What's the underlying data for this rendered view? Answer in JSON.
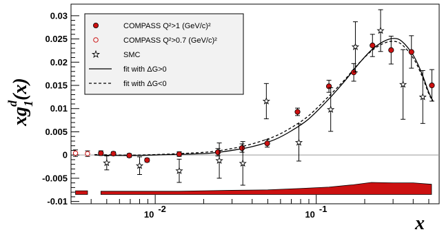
{
  "chart_data": {
    "type": "scatter",
    "xlabel": "x",
    "ylabel": "xg",
    "ylabel_sup": "d",
    "ylabel_sub": "1",
    "ylabel_arg": "(x)",
    "x_scale": "log",
    "xlim": [
      0.003,
      0.58
    ],
    "ylim": [
      -0.0105,
      0.0325
    ],
    "grid": false,
    "legend_position": "top-left",
    "x_tick_labels": [
      {
        "value": 0.01,
        "base": "10",
        "exp": "-2"
      },
      {
        "value": 0.1,
        "base": "10",
        "exp": "-1"
      }
    ],
    "y_ticks": [
      {
        "value": 0.03,
        "label": "0.03"
      },
      {
        "value": 0.025,
        "label": "0.025"
      },
      {
        "value": 0.02,
        "label": "0.02"
      },
      {
        "value": 0.015,
        "label": "0.015"
      },
      {
        "value": 0.01,
        "label": "0.01"
      },
      {
        "value": 0.005,
        "label": "0.005"
      },
      {
        "value": 0,
        "label": "0"
      },
      {
        "value": -0.005,
        "label": "-0.005"
      },
      {
        "value": -0.01,
        "label": "-0.01"
      }
    ],
    "legend": [
      {
        "key": "compass1",
        "text": "COMPASS Q²>1 (GeV/c)²"
      },
      {
        "key": "compass07",
        "text": "COMPASS Q²>0.7 (GeV/c)²"
      },
      {
        "key": "smc",
        "text": "SMC"
      },
      {
        "key": "fit_pos",
        "text": "fit with ΔG>0"
      },
      {
        "key": "fit_neg",
        "text": "fit with ΔG<0"
      }
    ],
    "series": [
      {
        "key": "compass1",
        "marker": "filled-circle",
        "color": "#cc1111",
        "points": [
          {
            "x": 0.0046,
            "y": 0.0004,
            "err": 0.0005
          },
          {
            "x": 0.0055,
            "y": 0.0003,
            "err": 0.0004
          },
          {
            "x": 0.0069,
            "y": -0.0001,
            "err": 0.0004
          },
          {
            "x": 0.0089,
            "y": -0.0011,
            "err": 0.0004
          },
          {
            "x": 0.0141,
            "y": 0.0002,
            "err": 0.0005
          },
          {
            "x": 0.0245,
            "y": 0.0006,
            "err": 0.0008
          },
          {
            "x": 0.0346,
            "y": 0.0015,
            "err": 0.0009
          },
          {
            "x": 0.0496,
            "y": 0.0025,
            "err": 0.0008
          },
          {
            "x": 0.0765,
            "y": 0.0093,
            "err": 0.0008
          },
          {
            "x": 0.1199,
            "y": 0.0148,
            "err": 0.0013
          },
          {
            "x": 0.171,
            "y": 0.0178,
            "err": 0.0019
          },
          {
            "x": 0.2235,
            "y": 0.0236,
            "err": 0.0024
          },
          {
            "x": 0.2918,
            "y": 0.0226,
            "err": 0.003
          },
          {
            "x": 0.3901,
            "y": 0.0222,
            "err": 0.0035
          },
          {
            "x": 0.5226,
            "y": 0.015,
            "err": 0.0034
          }
        ]
      },
      {
        "key": "compass07",
        "marker": "open-circle",
        "color": "#cc1111",
        "points": [
          {
            "x": 0.0032,
            "y": 0.0004,
            "err": 0.0007
          },
          {
            "x": 0.0038,
            "y": 0.0003,
            "err": 0.0006
          }
        ]
      },
      {
        "key": "smc",
        "marker": "open-star",
        "color": "#000000",
        "points": [
          {
            "x": 0.005,
            "y": -0.0017,
            "err": 0.0015
          },
          {
            "x": 0.008,
            "y": -0.0023,
            "err": 0.0019
          },
          {
            "x": 0.0141,
            "y": -0.0034,
            "err": 0.0025
          },
          {
            "x": 0.025,
            "y": -0.0012,
            "err": 0.0038
          },
          {
            "x": 0.035,
            "y": -0.0018,
            "err": 0.0047
          },
          {
            "x": 0.049,
            "y": 0.0116,
            "err": 0.0038
          },
          {
            "x": 0.078,
            "y": 0.0027,
            "err": 0.004
          },
          {
            "x": 0.123,
            "y": 0.0098,
            "err": 0.0047
          },
          {
            "x": 0.175,
            "y": 0.0233,
            "err": 0.0054
          },
          {
            "x": 0.251,
            "y": 0.0268,
            "err": 0.0045
          },
          {
            "x": 0.346,
            "y": 0.0152,
            "err": 0.0075
          },
          {
            "x": 0.4588,
            "y": 0.0125,
            "err": 0.0057
          }
        ]
      }
    ],
    "fits": [
      {
        "key": "fit_pos",
        "style": "solid",
        "points": [
          [
            0.0042,
            0.0
          ],
          [
            0.006,
            -0.0001
          ],
          [
            0.008,
            -0.0001
          ],
          [
            0.012,
            0.0001
          ],
          [
            0.016,
            0.0002
          ],
          [
            0.022,
            0.0004
          ],
          [
            0.03,
            0.001
          ],
          [
            0.04,
            0.0018
          ],
          [
            0.055,
            0.0033
          ],
          [
            0.07,
            0.0052
          ],
          [
            0.09,
            0.0078
          ],
          [
            0.12,
            0.0121
          ],
          [
            0.15,
            0.0159
          ],
          [
            0.18,
            0.0193
          ],
          [
            0.22,
            0.0226
          ],
          [
            0.26,
            0.0244
          ],
          [
            0.3,
            0.0251
          ],
          [
            0.34,
            0.0245
          ],
          [
            0.4,
            0.0215
          ],
          [
            0.45,
            0.0178
          ],
          [
            0.5,
            0.0135
          ],
          [
            0.53,
            0.0117
          ]
        ]
      },
      {
        "key": "fit_neg",
        "style": "dashed",
        "points": [
          [
            0.0042,
            0.0001
          ],
          [
            0.006,
            0.0
          ],
          [
            0.008,
            0.0
          ],
          [
            0.012,
            0.0002
          ],
          [
            0.016,
            0.0004
          ],
          [
            0.022,
            0.0007
          ],
          [
            0.03,
            0.0014
          ],
          [
            0.04,
            0.0024
          ],
          [
            0.055,
            0.004
          ],
          [
            0.07,
            0.0059
          ],
          [
            0.09,
            0.0085
          ],
          [
            0.12,
            0.0127
          ],
          [
            0.15,
            0.0162
          ],
          [
            0.18,
            0.0194
          ],
          [
            0.22,
            0.0224
          ],
          [
            0.26,
            0.024
          ],
          [
            0.3,
            0.0245
          ],
          [
            0.34,
            0.0238
          ],
          [
            0.4,
            0.0209
          ],
          [
            0.45,
            0.0173
          ],
          [
            0.5,
            0.0132
          ],
          [
            0.53,
            0.0116
          ]
        ]
      }
    ],
    "systematic_band": {
      "color": "#cc1111",
      "base": -0.0085,
      "segments": [
        {
          "x": [
            0.0032,
            0.0038
          ],
          "top": [
            -0.0077,
            -0.0077
          ]
        },
        {
          "x": [
            0.0046,
            0.007,
            0.01,
            0.014,
            0.02,
            0.03,
            0.05,
            0.08,
            0.12,
            0.17,
            0.22,
            0.3,
            0.4,
            0.52
          ],
          "top": [
            -0.0078,
            -0.0078,
            -0.0078,
            -0.0078,
            -0.0077,
            -0.0076,
            -0.0075,
            -0.0072,
            -0.0069,
            -0.0064,
            -0.0059,
            -0.006,
            -0.006,
            -0.0063
          ]
        }
      ]
    }
  }
}
